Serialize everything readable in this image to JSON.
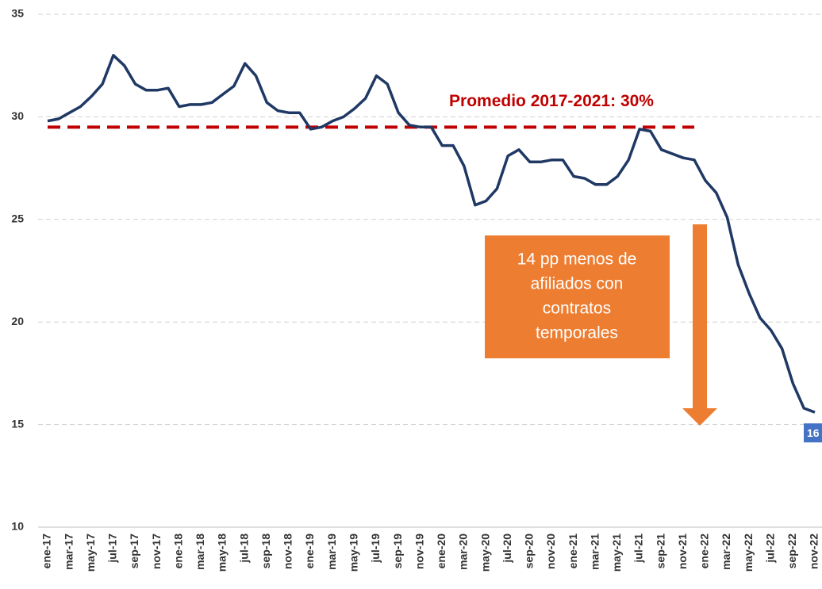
{
  "chart_data": {
    "type": "line",
    "categories": [
      "ene-17",
      null,
      "mar-17",
      null,
      "may-17",
      null,
      "jul-17",
      null,
      "sep-17",
      null,
      "nov-17",
      null,
      "ene-18",
      null,
      "mar-18",
      null,
      "may-18",
      null,
      "jul-18",
      null,
      "sep-18",
      null,
      "nov-18",
      null,
      "ene-19",
      null,
      "mar-19",
      null,
      "may-19",
      null,
      "jul-19",
      null,
      "sep-19",
      null,
      "nov-19",
      null,
      "ene-20",
      null,
      "mar-20",
      null,
      "may-20",
      null,
      "jul-20",
      null,
      "sep-20",
      null,
      "nov-20",
      null,
      "ene-21",
      null,
      "mar-21",
      null,
      "may-21",
      null,
      "jul-21",
      null,
      "sep-21",
      null,
      "nov-21",
      null,
      "ene-22",
      null,
      "mar-22",
      null,
      "may-22",
      null,
      "jul-22",
      null,
      "sep-22",
      null,
      "nov-22"
    ],
    "series": [
      {
        "color": "#1f3864",
        "values": [
          29.8,
          29.9,
          30.2,
          30.5,
          31.0,
          31.6,
          33.0,
          32.5,
          31.6,
          31.3,
          31.3,
          31.4,
          30.5,
          30.6,
          30.6,
          30.7,
          31.1,
          31.5,
          32.6,
          32.0,
          30.7,
          30.3,
          30.2,
          30.2,
          29.4,
          29.5,
          29.8,
          30.0,
          30.4,
          30.9,
          32.0,
          31.6,
          30.2,
          29.6,
          29.5,
          29.5,
          28.6,
          28.6,
          27.6,
          25.7,
          25.9,
          26.5,
          28.1,
          28.4,
          27.8,
          27.8,
          27.9,
          27.9,
          27.1,
          27.0,
          26.7,
          26.7,
          27.1,
          27.9,
          29.4,
          29.3,
          28.4,
          28.2,
          28.0,
          27.9,
          26.9,
          26.3,
          25.1,
          22.8,
          21.4,
          20.2,
          19.6,
          18.7,
          17.0,
          15.8,
          15.6
        ],
        "value_labels": [
          null,
          null,
          null,
          null,
          null,
          null,
          null,
          null,
          null,
          null,
          null,
          null,
          null,
          null,
          null,
          null,
          null,
          null,
          null,
          null,
          null,
          null,
          null,
          null,
          null,
          null,
          null,
          null,
          null,
          null,
          null,
          null,
          null,
          null,
          null,
          null,
          null,
          null,
          null,
          null,
          null,
          null,
          null,
          null,
          null,
          null,
          null,
          null,
          null,
          null,
          null,
          null,
          null,
          null,
          null,
          null,
          null,
          null,
          null,
          null,
          null,
          null,
          null,
          null,
          null,
          null,
          null,
          null,
          null,
          null,
          "16"
        ],
        "label_color": "#4472c4"
      }
    ],
    "ylim": [
      10,
      35
    ],
    "yticks": [
      10,
      15,
      20,
      25,
      30,
      35
    ],
    "grid": true,
    "reference_line": {
      "value": 29.5,
      "label": "Promedio 2017-2021: 30%",
      "color": "#c00000"
    },
    "annotation": {
      "lines": [
        "14 pp menos de",
        "afiliados con",
        "contratos",
        "temporales"
      ],
      "color": "#ed7d31"
    }
  }
}
